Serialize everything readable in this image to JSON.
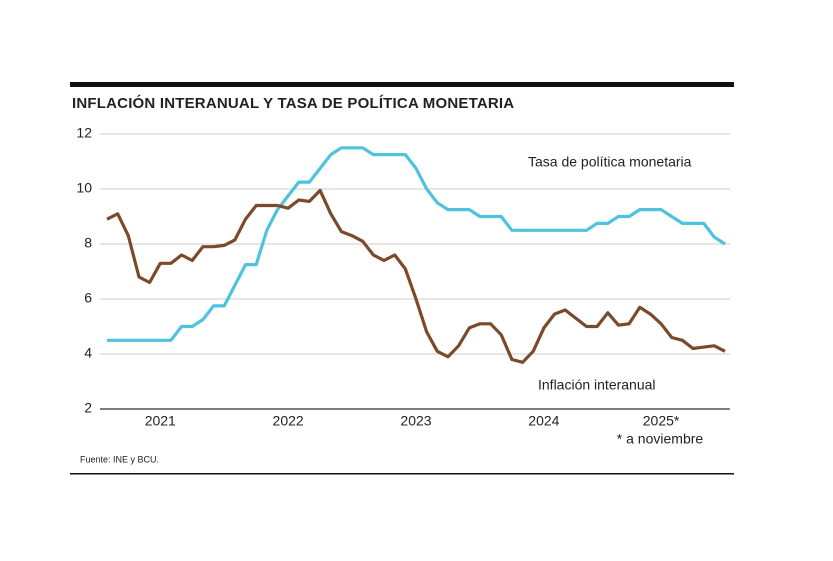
{
  "chart_data": {
    "type": "line",
    "title": "INFLACIÓN INTERANUAL Y TASA DE POLÍTICA MONETARIA",
    "categories": [
      null,
      null,
      null,
      null,
      null,
      "2021",
      null,
      null,
      null,
      null,
      null,
      null,
      null,
      null,
      null,
      null,
      null,
      "2022",
      null,
      null,
      null,
      null,
      null,
      null,
      null,
      null,
      null,
      null,
      null,
      "2023",
      null,
      null,
      null,
      null,
      null,
      null,
      null,
      null,
      null,
      null,
      null,
      "2024",
      null,
      null,
      null,
      null,
      null,
      null,
      null,
      null,
      null,
      null,
      "2025*",
      null,
      null,
      null,
      null,
      null,
      null
    ],
    "series": [
      {
        "name": "Tasa de política monetaria",
        "color": "#4fc3de",
        "values": [
          4.5,
          4.5,
          4.5,
          4.5,
          4.5,
          4.5,
          4.5,
          5.0,
          5.0,
          5.25,
          5.75,
          5.75,
          6.5,
          7.25,
          7.25,
          8.5,
          9.25,
          9.75,
          10.25,
          10.25,
          10.75,
          11.25,
          11.5,
          11.5,
          11.5,
          11.25,
          11.25,
          11.25,
          11.25,
          10.75,
          10.0,
          9.5,
          9.25,
          9.25,
          9.25,
          9.0,
          9.0,
          9.0,
          8.5,
          8.5,
          8.5,
          8.5,
          8.5,
          8.5,
          8.5,
          8.5,
          8.75,
          8.75,
          9.0,
          9.0,
          9.25,
          9.25,
          9.25,
          9.0,
          8.75,
          8.75,
          8.75,
          8.25,
          8.0
        ]
      },
      {
        "name": "Inflación interanual",
        "color": "#7b4a2a",
        "values": [
          8.9,
          9.1,
          8.3,
          6.8,
          6.6,
          7.3,
          7.3,
          7.6,
          7.4,
          7.9,
          7.9,
          7.95,
          8.15,
          8.9,
          9.4,
          9.4,
          9.4,
          9.3,
          9.6,
          9.55,
          9.95,
          9.1,
          8.45,
          8.3,
          8.1,
          7.6,
          7.4,
          7.6,
          7.1,
          6.0,
          4.8,
          4.1,
          3.9,
          4.3,
          4.95,
          5.1,
          5.1,
          4.7,
          3.8,
          3.7,
          4.1,
          4.95,
          5.45,
          5.6,
          5.3,
          5.0,
          5.0,
          5.5,
          5.05,
          5.1,
          5.7,
          5.45,
          5.1,
          4.6,
          4.5,
          4.2,
          4.25,
          4.3,
          4.1
        ]
      }
    ],
    "ylim": [
      2,
      12
    ],
    "yticks": [
      2,
      4,
      6,
      8,
      10,
      12
    ],
    "grid": true,
    "note": "* a noviembre",
    "source": "Fuente: INE y BCU."
  }
}
